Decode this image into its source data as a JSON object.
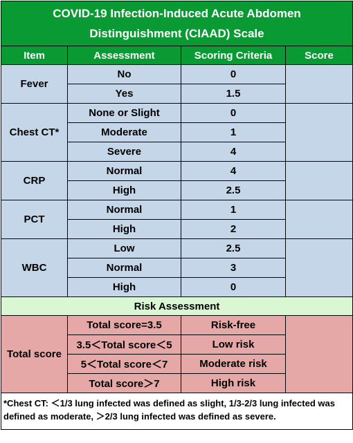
{
  "title_line1": "COVID-19 Infection-Induced Acute Abdomen",
  "title_line2": "Distinguishment (CIAAD) Scale",
  "headers": [
    "Item",
    "Assessment",
    "Scoring Criteria",
    "Score"
  ],
  "items": [
    {
      "item": "Fever",
      "rows": [
        {
          "assessment": "No",
          "criteria": "0"
        },
        {
          "assessment": "Yes",
          "criteria": "1.5"
        }
      ]
    },
    {
      "item": "Chest CT*",
      "rows": [
        {
          "assessment": "None or Slight",
          "criteria": "0"
        },
        {
          "assessment": "Moderate",
          "criteria": "1"
        },
        {
          "assessment": "Severe",
          "criteria": "4"
        }
      ]
    },
    {
      "item": "CRP",
      "rows": [
        {
          "assessment": "Normal",
          "criteria": "4"
        },
        {
          "assessment": "High",
          "criteria": "2.5"
        }
      ]
    },
    {
      "item": "PCT",
      "rows": [
        {
          "assessment": "Normal",
          "criteria": "1"
        },
        {
          "assessment": "High",
          "criteria": "2"
        }
      ]
    },
    {
      "item": "WBC",
      "rows": [
        {
          "assessment": "Low",
          "criteria": "2.5"
        },
        {
          "assessment": "Normal",
          "criteria": "3"
        },
        {
          "assessment": "High",
          "criteria": "0"
        }
      ]
    }
  ],
  "risk_header": "Risk Assessment",
  "total_label": "Total score",
  "risk_rows": [
    {
      "range": "Total score=3.5",
      "risk": "Risk-free"
    },
    {
      "range": "3.5＜Total score＜5",
      "risk": "Low risk"
    },
    {
      "range": "5＜Total score＜7",
      "risk": "Moderate  risk"
    },
    {
      "range": "Total score＞7",
      "risk": "High risk"
    }
  ],
  "footnote": "*Chest CT: ＜1/3 lung infected was defined as slight, 1/3-2/3 lung infected was defined as moderate, ＞2/3 lung infected was defined as severe.",
  "colors": {
    "header_green": "#0a9a34",
    "row_blue": "#c5d6e9",
    "band_green": "#d9f7d3",
    "risk_red": "#e5a8a6"
  }
}
